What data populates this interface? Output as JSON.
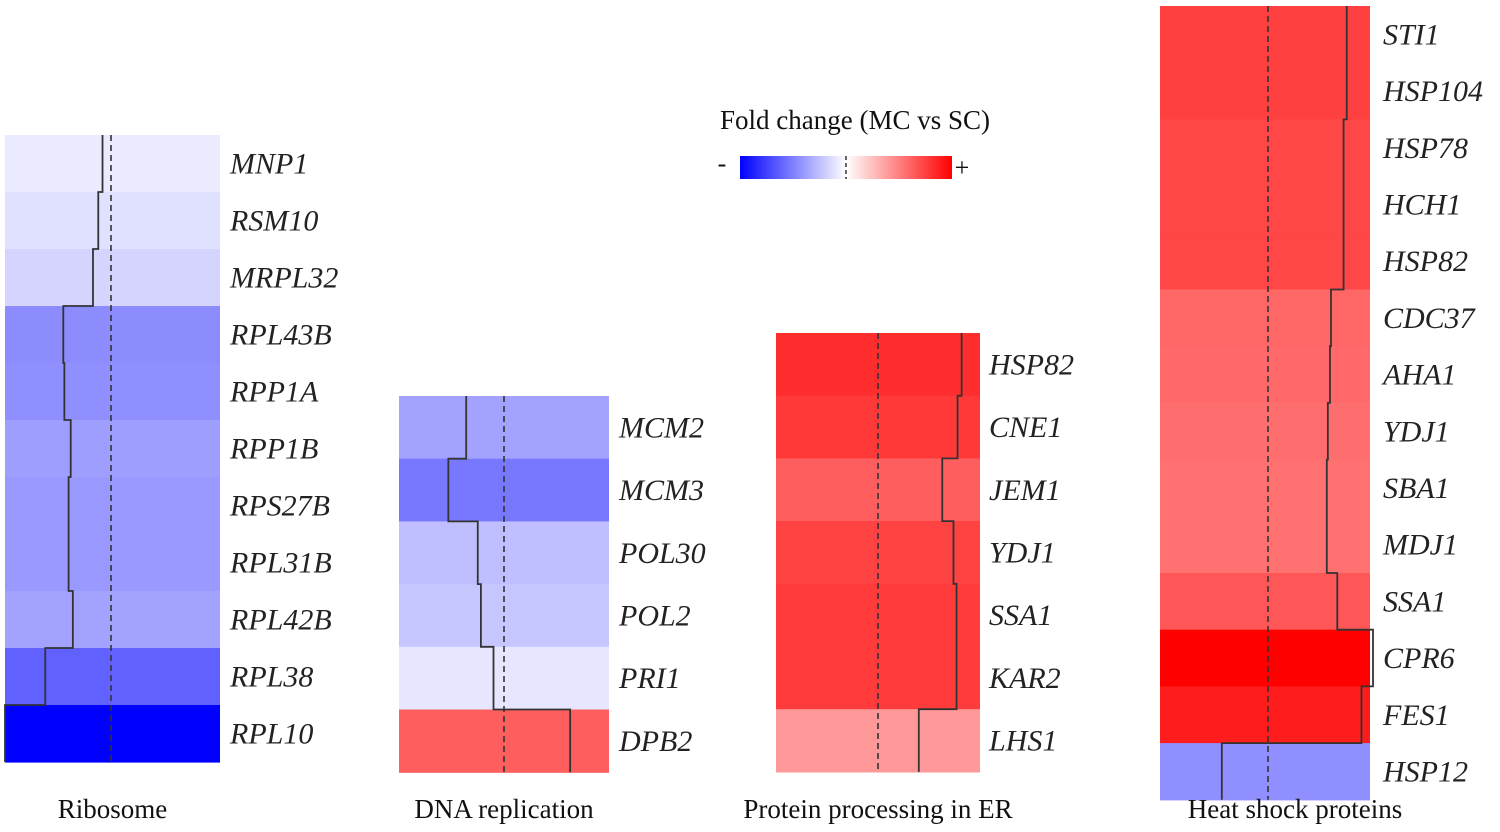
{
  "chart_data": {
    "type": "heatmap",
    "legend": {
      "title": "Fold change (MC vs SC)",
      "minus_label": "-",
      "plus_label": "+",
      "colors": {
        "negative": "#0000ff",
        "zero": "#ffffff",
        "positive": "#ff0000"
      }
    },
    "panels": [
      {
        "title": "Ribosome",
        "genes": [
          "MNP1",
          "RSM10",
          "MRPL32",
          "RPL43B",
          "RPP1A",
          "RPP1B",
          "RPS27B",
          "RPL31B",
          "RPL42B",
          "RPL38",
          "RPL10"
        ],
        "values": [
          -0.08,
          -0.12,
          -0.17,
          -0.45,
          -0.44,
          -0.38,
          -0.4,
          -0.4,
          -0.36,
          -0.62,
          -1.0
        ]
      },
      {
        "title": "DNA replication",
        "genes": [
          "MCM2",
          "MCM3",
          "POL30",
          "POL2",
          "PRI1",
          "DPB2"
        ],
        "values": [
          -0.36,
          -0.53,
          -0.25,
          -0.22,
          -0.1,
          0.63
        ]
      },
      {
        "title": "Protein processing in ER",
        "genes": [
          "HSP82",
          "CNE1",
          "JEM1",
          "YDJ1",
          "SSA1",
          "KAR2",
          "LHS1"
        ],
        "values": [
          0.82,
          0.78,
          0.63,
          0.74,
          0.77,
          0.77,
          0.4
        ]
      },
      {
        "title": "Heat shock proteins",
        "genes": [
          "STI1",
          "HSP104",
          "HSP78",
          "HCH1",
          "HSP82",
          "CDC37",
          "AHA1",
          "YDJ1",
          "SBA1",
          "MDJ1",
          "SSA1",
          "CPR6",
          "FES1",
          "HSP12"
        ],
        "values": [
          0.75,
          0.75,
          0.72,
          0.72,
          0.72,
          0.6,
          0.59,
          0.57,
          0.56,
          0.56,
          0.66,
          1.0,
          0.89,
          -0.44
        ]
      }
    ]
  }
}
